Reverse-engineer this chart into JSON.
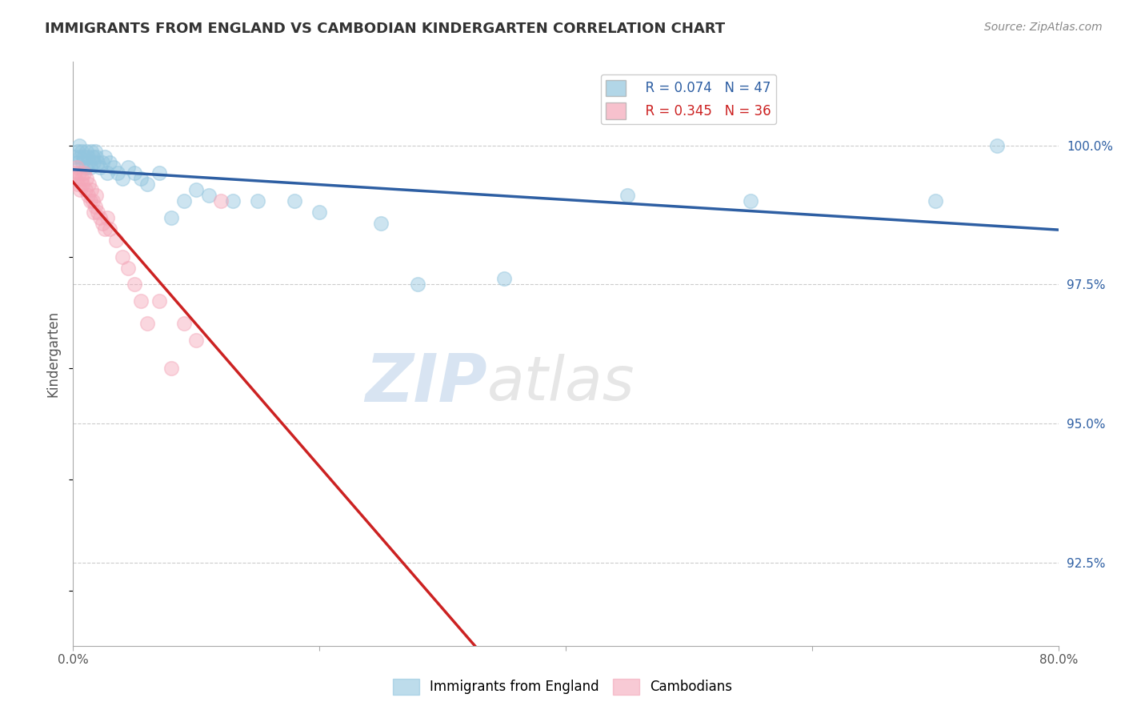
{
  "title": "IMMIGRANTS FROM ENGLAND VS CAMBODIAN KINDERGARTEN CORRELATION CHART",
  "source_text": "Source: ZipAtlas.com",
  "ylabel": "Kindergarten",
  "xlim": [
    0.0,
    80.0
  ],
  "ylim": [
    91.0,
    101.5
  ],
  "yticks_right": [
    92.5,
    95.0,
    97.5,
    100.0
  ],
  "ytick_labels_right": [
    "92.5%",
    "95.0%",
    "97.5%",
    "100.0%"
  ],
  "grid_color": "#cccccc",
  "background_color": "#ffffff",
  "legend_r1": "R = 0.074   N = 47",
  "legend_r2": "R = 0.345   N = 36",
  "blue_color": "#92c5de",
  "pink_color": "#f4a7b9",
  "blue_line_color": "#2e5fa3",
  "red_line_color": "#cc2222",
  "blue_scatter_x": [
    0.2,
    0.3,
    0.4,
    0.5,
    0.6,
    0.7,
    0.8,
    0.9,
    1.0,
    1.1,
    1.2,
    1.3,
    1.4,
    1.5,
    1.6,
    1.7,
    1.8,
    1.9,
    2.0,
    2.2,
    2.4,
    2.6,
    2.8,
    3.0,
    3.3,
    3.6,
    4.0,
    4.5,
    5.0,
    5.5,
    6.0,
    7.0,
    8.0,
    9.0,
    10.0,
    11.0,
    13.0,
    15.0,
    18.0,
    20.0,
    25.0,
    28.0,
    35.0,
    45.0,
    55.0,
    70.0,
    75.0
  ],
  "blue_scatter_y": [
    99.8,
    99.7,
    99.9,
    100.0,
    99.8,
    99.9,
    99.7,
    99.8,
    99.6,
    99.9,
    99.8,
    99.7,
    99.6,
    99.9,
    99.8,
    99.7,
    99.9,
    99.8,
    99.7,
    99.6,
    99.7,
    99.8,
    99.5,
    99.7,
    99.6,
    99.5,
    99.4,
    99.6,
    99.5,
    99.4,
    99.3,
    99.5,
    98.7,
    99.0,
    99.2,
    99.1,
    99.0,
    99.0,
    99.0,
    98.8,
    98.6,
    97.5,
    97.6,
    99.1,
    99.0,
    99.0,
    100.0
  ],
  "pink_scatter_x": [
    0.1,
    0.2,
    0.3,
    0.4,
    0.5,
    0.6,
    0.7,
    0.8,
    0.9,
    1.0,
    1.1,
    1.2,
    1.3,
    1.4,
    1.5,
    1.6,
    1.7,
    1.8,
    1.9,
    2.0,
    2.2,
    2.4,
    2.6,
    2.8,
    3.0,
    3.5,
    4.0,
    4.5,
    5.0,
    5.5,
    6.0,
    7.0,
    8.0,
    9.0,
    10.0,
    12.0
  ],
  "pink_scatter_y": [
    99.5,
    99.4,
    99.6,
    99.3,
    99.5,
    99.2,
    99.4,
    99.3,
    99.5,
    99.2,
    99.4,
    99.1,
    99.3,
    99.0,
    99.2,
    99.0,
    98.8,
    98.9,
    99.1,
    98.8,
    98.7,
    98.6,
    98.5,
    98.7,
    98.5,
    98.3,
    98.0,
    97.8,
    97.5,
    97.2,
    96.8,
    97.2,
    96.0,
    96.8,
    96.5,
    99.0
  ],
  "watermark_text": "ZIPatlas",
  "watermark_zip_color": "#c5d8ef",
  "watermark_atlas_color": "#c5c5c5"
}
